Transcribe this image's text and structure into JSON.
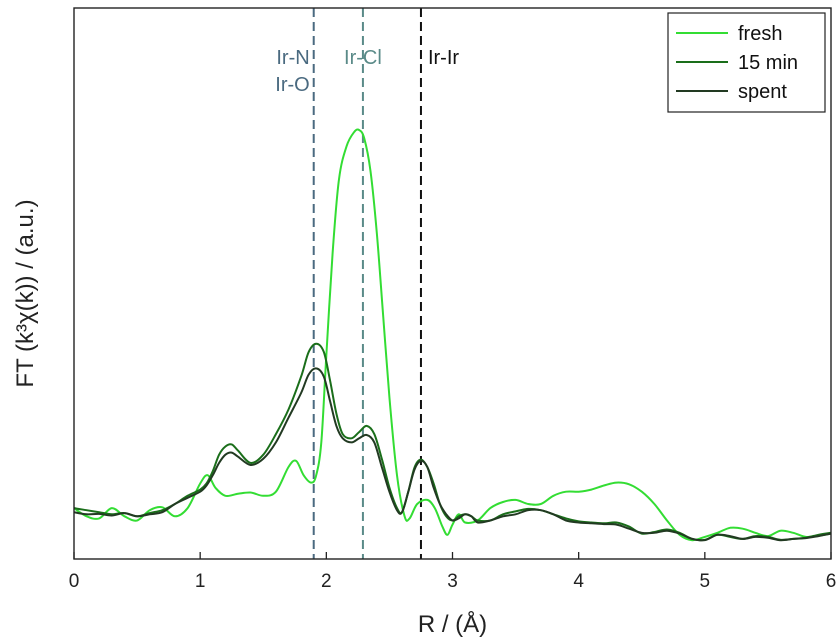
{
  "chart_data": {
    "type": "line",
    "title": "",
    "xlabel": "R / (Å)",
    "ylabel": "FT (k³χ(k)) / (a.u.)",
    "xlim": [
      0,
      6
    ],
    "ylim": [
      0,
      100
    ],
    "x_ticks": [
      "0",
      "1",
      "2",
      "3",
      "4",
      "5",
      "6"
    ],
    "grid": false,
    "legend_position": "top-right",
    "series": [
      {
        "name": "fresh",
        "color": "#33dd33",
        "points": [
          [
            0,
            8
          ],
          [
            0.1,
            6
          ],
          [
            0.2,
            5.5
          ],
          [
            0.3,
            8
          ],
          [
            0.4,
            6
          ],
          [
            0.5,
            5
          ],
          [
            0.6,
            7.5
          ],
          [
            0.7,
            8.2
          ],
          [
            0.8,
            6
          ],
          [
            0.9,
            8
          ],
          [
            1.0,
            14
          ],
          [
            1.06,
            16
          ],
          [
            1.12,
            13
          ],
          [
            1.2,
            11
          ],
          [
            1.3,
            11.5
          ],
          [
            1.4,
            11.8
          ],
          [
            1.5,
            11
          ],
          [
            1.6,
            12
          ],
          [
            1.7,
            18
          ],
          [
            1.76,
            19.5
          ],
          [
            1.82,
            16
          ],
          [
            1.88,
            14.2
          ],
          [
            1.92,
            16
          ],
          [
            1.96,
            24
          ],
          [
            2.0,
            45
          ],
          [
            2.05,
            70
          ],
          [
            2.1,
            88
          ],
          [
            2.16,
            96
          ],
          [
            2.22,
            99.5
          ],
          [
            2.26,
            100
          ],
          [
            2.3,
            98
          ],
          [
            2.35,
            90
          ],
          [
            2.4,
            75
          ],
          [
            2.45,
            55
          ],
          [
            2.5,
            35
          ],
          [
            2.56,
            16
          ],
          [
            2.62,
            6
          ],
          [
            2.66,
            5.5
          ],
          [
            2.72,
            9
          ],
          [
            2.8,
            10
          ],
          [
            2.86,
            8
          ],
          [
            2.92,
            3.5
          ],
          [
            2.96,
            1.5
          ],
          [
            3.0,
            4
          ],
          [
            3.05,
            6.5
          ],
          [
            3.1,
            4.5
          ],
          [
            3.2,
            5
          ],
          [
            3.3,
            8
          ],
          [
            3.4,
            9.5
          ],
          [
            3.5,
            10
          ],
          [
            3.6,
            9
          ],
          [
            3.7,
            9
          ],
          [
            3.8,
            11
          ],
          [
            3.9,
            12
          ],
          [
            4.0,
            12
          ],
          [
            4.1,
            12.5
          ],
          [
            4.2,
            13.5
          ],
          [
            4.3,
            14.2
          ],
          [
            4.4,
            13.8
          ],
          [
            4.5,
            12
          ],
          [
            4.6,
            9
          ],
          [
            4.7,
            5
          ],
          [
            4.8,
            1.5
          ],
          [
            4.9,
            0.2
          ],
          [
            5.0,
            1
          ],
          [
            5.1,
            2
          ],
          [
            5.2,
            3.2
          ],
          [
            5.3,
            3
          ],
          [
            5.4,
            2
          ],
          [
            5.5,
            1.2
          ],
          [
            5.6,
            2.5
          ],
          [
            5.7,
            2
          ],
          [
            5.8,
            1
          ],
          [
            5.9,
            1.3
          ],
          [
            6.0,
            1.8
          ]
        ]
      },
      {
        "name": "15 min",
        "color": "#1a6e1a",
        "points": [
          [
            0,
            8
          ],
          [
            0.1,
            7.5
          ],
          [
            0.2,
            7
          ],
          [
            0.3,
            6.5
          ],
          [
            0.4,
            6.8
          ],
          [
            0.5,
            6
          ],
          [
            0.6,
            6.8
          ],
          [
            0.7,
            7.5
          ],
          [
            0.8,
            9
          ],
          [
            0.9,
            11
          ],
          [
            1.0,
            12.5
          ],
          [
            1.05,
            14
          ],
          [
            1.1,
            17
          ],
          [
            1.15,
            21
          ],
          [
            1.2,
            23
          ],
          [
            1.25,
            23.5
          ],
          [
            1.3,
            22
          ],
          [
            1.4,
            19
          ],
          [
            1.5,
            21
          ],
          [
            1.6,
            26
          ],
          [
            1.7,
            32
          ],
          [
            1.8,
            40
          ],
          [
            1.86,
            46
          ],
          [
            1.92,
            48
          ],
          [
            1.98,
            46
          ],
          [
            2.03,
            39
          ],
          [
            2.08,
            31
          ],
          [
            2.13,
            26
          ],
          [
            2.2,
            25
          ],
          [
            2.26,
            26.5
          ],
          [
            2.32,
            28
          ],
          [
            2.38,
            26
          ],
          [
            2.44,
            20
          ],
          [
            2.5,
            13
          ],
          [
            2.56,
            8
          ],
          [
            2.6,
            7
          ],
          [
            2.65,
            12
          ],
          [
            2.7,
            18
          ],
          [
            2.75,
            19.8
          ],
          [
            2.8,
            18
          ],
          [
            2.85,
            14
          ],
          [
            2.9,
            9
          ],
          [
            2.95,
            6
          ],
          [
            3.0,
            5
          ],
          [
            3.05,
            6
          ],
          [
            3.1,
            6.5
          ],
          [
            3.15,
            6
          ],
          [
            3.2,
            5
          ],
          [
            3.3,
            5
          ],
          [
            3.4,
            6.5
          ],
          [
            3.5,
            7.2
          ],
          [
            3.6,
            7.8
          ],
          [
            3.7,
            7.5
          ],
          [
            3.8,
            6.5
          ],
          [
            3.9,
            5.5
          ],
          [
            4.0,
            4.8
          ],
          [
            4.1,
            4.5
          ],
          [
            4.2,
            4.3
          ],
          [
            4.3,
            4.5
          ],
          [
            4.4,
            3.5
          ],
          [
            4.5,
            1.8
          ],
          [
            4.6,
            2.2
          ],
          [
            4.7,
            2.8
          ],
          [
            4.8,
            2
          ],
          [
            4.9,
            0.5
          ],
          [
            5.0,
            0.3
          ],
          [
            5.1,
            1.5
          ],
          [
            5.2,
            1
          ],
          [
            5.3,
            0.5
          ],
          [
            5.4,
            1.2
          ],
          [
            5.5,
            1
          ],
          [
            5.6,
            0.3
          ],
          [
            5.7,
            0.5
          ],
          [
            5.8,
            0.8
          ],
          [
            5.9,
            1.5
          ],
          [
            6.0,
            2
          ]
        ]
      },
      {
        "name": "spent",
        "color": "#223a22",
        "points": [
          [
            0,
            7
          ],
          [
            0.1,
            6.5
          ],
          [
            0.2,
            6.6
          ],
          [
            0.3,
            6.2
          ],
          [
            0.4,
            6.8
          ],
          [
            0.5,
            6
          ],
          [
            0.6,
            6.5
          ],
          [
            0.7,
            7
          ],
          [
            0.8,
            9
          ],
          [
            0.9,
            10.5
          ],
          [
            1.0,
            12
          ],
          [
            1.05,
            13.5
          ],
          [
            1.1,
            16
          ],
          [
            1.15,
            19
          ],
          [
            1.2,
            21
          ],
          [
            1.25,
            21.5
          ],
          [
            1.3,
            20.5
          ],
          [
            1.4,
            18.5
          ],
          [
            1.5,
            20
          ],
          [
            1.6,
            24
          ],
          [
            1.7,
            30
          ],
          [
            1.8,
            36
          ],
          [
            1.86,
            40.5
          ],
          [
            1.92,
            42
          ],
          [
            1.98,
            40
          ],
          [
            2.03,
            34
          ],
          [
            2.08,
            28
          ],
          [
            2.13,
            25
          ],
          [
            2.2,
            24
          ],
          [
            2.26,
            25
          ],
          [
            2.32,
            25.8
          ],
          [
            2.38,
            24
          ],
          [
            2.44,
            18
          ],
          [
            2.5,
            12
          ],
          [
            2.56,
            7.5
          ],
          [
            2.6,
            7
          ],
          [
            2.65,
            12
          ],
          [
            2.7,
            17.5
          ],
          [
            2.75,
            19.5
          ],
          [
            2.8,
            18
          ],
          [
            2.85,
            13
          ],
          [
            2.9,
            9
          ],
          [
            2.95,
            6.5
          ],
          [
            3.0,
            5
          ],
          [
            3.05,
            5.5
          ],
          [
            3.1,
            6.5
          ],
          [
            3.15,
            6
          ],
          [
            3.2,
            4.5
          ],
          [
            3.3,
            5
          ],
          [
            3.4,
            6
          ],
          [
            3.5,
            6.5
          ],
          [
            3.6,
            7.5
          ],
          [
            3.7,
            7.5
          ],
          [
            3.8,
            6.5
          ],
          [
            3.9,
            5
          ],
          [
            4.0,
            4.5
          ],
          [
            4.1,
            4.3
          ],
          [
            4.2,
            4.1
          ],
          [
            4.3,
            4
          ],
          [
            4.4,
            3
          ],
          [
            4.5,
            2
          ],
          [
            4.6,
            2
          ],
          [
            4.7,
            2.5
          ],
          [
            4.8,
            1.8
          ],
          [
            4.9,
            0.5
          ],
          [
            5.0,
            0.2
          ],
          [
            5.1,
            1.5
          ],
          [
            5.2,
            1.2
          ],
          [
            5.3,
            0.5
          ],
          [
            5.4,
            1
          ],
          [
            5.5,
            0.8
          ],
          [
            5.6,
            0.2
          ],
          [
            5.7,
            0.5
          ],
          [
            5.8,
            0.7
          ],
          [
            5.9,
            1.2
          ],
          [
            6.0,
            1.8
          ]
        ]
      }
    ],
    "annotations": [
      {
        "name": "ir-n-ir-o",
        "x": 1.9,
        "lines": [
          "Ir-N",
          "Ir-O"
        ],
        "color": "#4a6a80"
      },
      {
        "name": "ir-cl",
        "x": 2.29,
        "lines": [
          "Ir-Cl"
        ],
        "color": "#5a8a88"
      },
      {
        "name": "ir-ir",
        "x": 2.75,
        "lines": [
          "Ir-Ir"
        ],
        "color": "#111111"
      }
    ]
  }
}
